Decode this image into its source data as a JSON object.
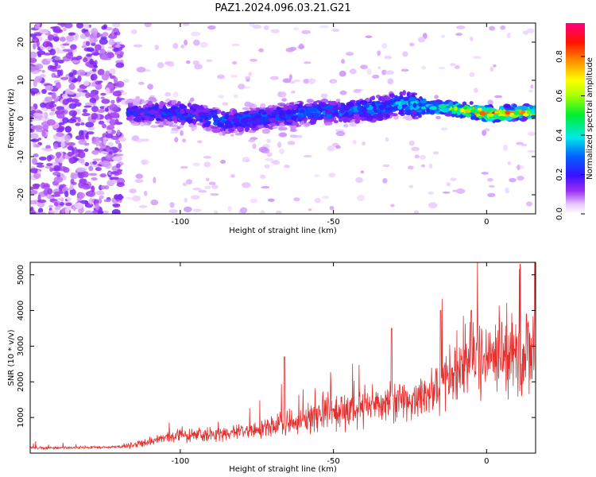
{
  "title": "PAZ1.2024.096.03.21.G21",
  "chart_data": [
    {
      "type": "heatmap",
      "xlabel": "Height of straight line (km)",
      "ylabel": "Frequency (Hz)",
      "xlim": [
        -149,
        16
      ],
      "ylim": [
        -25,
        25
      ],
      "xticks": [
        -100,
        -50,
        0
      ],
      "yticks": [
        -20,
        -10,
        0,
        10,
        20
      ],
      "colorbar": {
        "label": "Normalized spectral amplitude",
        "range": [
          0,
          0.97
        ],
        "ticks": [
          0.0,
          0.2,
          0.4,
          0.6,
          0.8
        ]
      },
      "band": [
        {
          "x": -115,
          "center_hz": 1.5,
          "peak": 0.22
        },
        {
          "x": -105,
          "center_hz": 1.5,
          "peak": 0.28
        },
        {
          "x": -95,
          "center_hz": 1.0,
          "peak": 0.26
        },
        {
          "x": -85,
          "center_hz": -1.0,
          "peak": 0.3
        },
        {
          "x": -75,
          "center_hz": 0.0,
          "peak": 0.3
        },
        {
          "x": -65,
          "center_hz": 1.0,
          "peak": 0.28
        },
        {
          "x": -55,
          "center_hz": 1.5,
          "peak": 0.32
        },
        {
          "x": -45,
          "center_hz": 2.0,
          "peak": 0.3
        },
        {
          "x": -35,
          "center_hz": 2.5,
          "peak": 0.35
        },
        {
          "x": -28,
          "center_hz": 4.0,
          "peak": 0.38
        },
        {
          "x": -20,
          "center_hz": 3.0,
          "peak": 0.4
        },
        {
          "x": -12,
          "center_hz": 2.5,
          "peak": 0.65
        },
        {
          "x": -5,
          "center_hz": 2.0,
          "peak": 0.8
        },
        {
          "x": 2,
          "center_hz": 1.0,
          "peak": 0.85
        },
        {
          "x": 10,
          "center_hz": 1.5,
          "peak": 0.8
        },
        {
          "x": 15,
          "center_hz": 1.5,
          "peak": 0.75
        }
      ]
    },
    {
      "type": "line",
      "xlabel": "Height of straight line (km)",
      "ylabel": "SNR (10 * v/v)",
      "xlim": [
        -149,
        16
      ],
      "ylim": [
        0,
        5350
      ],
      "xticks": [
        -100,
        -50,
        0
      ],
      "yticks": [
        1000,
        2000,
        3000,
        4000,
        5000
      ],
      "color": "#e53030",
      "series": [
        {
          "x": [
            -149,
            -140,
            -130,
            -120,
            -115,
            -110,
            -105,
            -100,
            -95,
            -90,
            -85,
            -80,
            -75,
            -70,
            -65,
            -60,
            -55,
            -50,
            -45,
            -40,
            -35,
            -30,
            -25,
            -20,
            -17,
            -15,
            -10,
            -5,
            0,
            5,
            8,
            10,
            12,
            14,
            16
          ],
          "y": [
            150,
            150,
            160,
            180,
            230,
            320,
            450,
            520,
            480,
            500,
            550,
            620,
            700,
            780,
            850,
            950,
            1050,
            1150,
            1200,
            1300,
            1350,
            1400,
            1450,
            1550,
            1700,
            2000,
            2400,
            2600,
            2800,
            2900,
            2700,
            3000,
            2600,
            3100,
            3300
          ]
        }
      ],
      "peaks": [
        {
          "x": -66,
          "y": 2700
        },
        {
          "x": -31,
          "y": 3500
        },
        {
          "x": -15,
          "y": 4000
        },
        {
          "x": -5,
          "y": 4000
        },
        {
          "x": 11,
          "y": 5300
        },
        {
          "x": 13,
          "y": 3900
        }
      ]
    }
  ]
}
